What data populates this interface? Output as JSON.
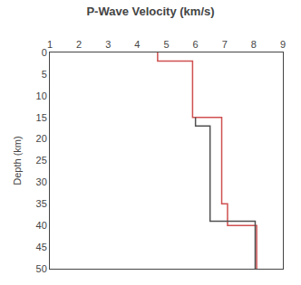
{
  "chart_data": {
    "type": "line",
    "title": "P-Wave Velocity (km/s)",
    "ylabel": "Depth (km)",
    "series": [
      {
        "color": "#d05050",
        "x": [
          4.7,
          4.7,
          5.9,
          5.9,
          6.9,
          6.9,
          7.1,
          7.1,
          8.1,
          8.1
        ],
        "values": [
          0,
          2,
          2,
          15,
          15,
          35,
          35,
          40,
          40,
          50
        ]
      },
      {
        "color": "#505050",
        "x": [
          6.0,
          6.0,
          6.5,
          6.5,
          8.05,
          8.05
        ],
        "values": [
          15,
          17,
          17,
          39,
          39,
          50
        ]
      }
    ],
    "xlim": [
      1,
      9
    ],
    "xticks": [
      1,
      2,
      3,
      4,
      5,
      6,
      7,
      8,
      9
    ],
    "ylim": [
      50,
      0
    ],
    "yticks": [
      0,
      5,
      10,
      15,
      20,
      25,
      30,
      35,
      40,
      45,
      50
    ],
    "grid": false
  }
}
